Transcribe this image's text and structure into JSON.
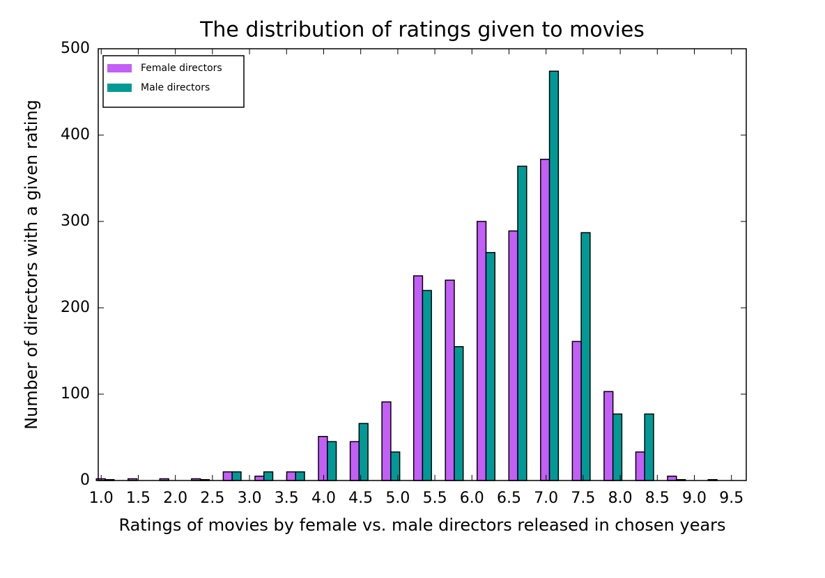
{
  "chart_data": {
    "type": "histogram",
    "title": "The distribution of ratings given to movies",
    "x_label": "Ratings of movies by female vs. male directors released in chosen years",
    "y_label": "Number of directors with a given rating",
    "bins": [
      0.84,
      1.268,
      1.696,
      2.124,
      2.552,
      2.98,
      3.408,
      3.836,
      4.264,
      4.692,
      5.12,
      5.548,
      5.976,
      6.404,
      6.832,
      7.26,
      7.688,
      8.116,
      8.544,
      8.972,
      9.4
    ],
    "series": [
      {
        "name": "Female directors",
        "color": "#c35ef7",
        "values": [
          2,
          2,
          2,
          2,
          10,
          5,
          10,
          51,
          45,
          91,
          237,
          232,
          300,
          289,
          372,
          161,
          103,
          33,
          5,
          0
        ]
      },
      {
        "name": "Male directors",
        "color": "#009a96",
        "values": [
          1,
          0,
          0,
          1,
          10,
          10,
          10,
          45,
          66,
          33,
          220,
          155,
          264,
          364,
          474,
          287,
          77,
          77,
          1,
          1
        ]
      }
    ],
    "xlim": [
      0.96,
      9.7
    ],
    "ylim": [
      0,
      500
    ],
    "xticks": [
      {
        "value": 1.0,
        "label": "1.0"
      },
      1.5,
      {
        "value": 2.0,
        "label": "2.0"
      },
      2.5,
      {
        "value": 3.0,
        "label": "3.0"
      },
      3.5,
      {
        "value": 4.0,
        "label": "4.0"
      },
      4.5,
      {
        "value": 5.0,
        "label": "5.0"
      },
      5.5,
      {
        "value": 6.0,
        "label": "6.0"
      },
      6.5,
      {
        "value": 7.0,
        "label": "7.0"
      },
      7.5,
      {
        "value": 8.0,
        "label": "8.0"
      },
      8.5,
      {
        "value": 9.0,
        "label": "9.0"
      },
      9.5
    ],
    "yticks": [
      0,
      100,
      200,
      300,
      400,
      500
    ],
    "legend": "upper left"
  }
}
